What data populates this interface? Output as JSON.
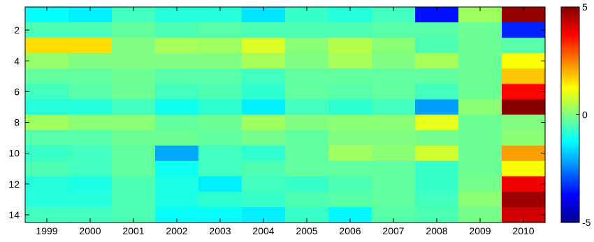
{
  "chart_data": {
    "type": "heatmap",
    "x": [
      "1999",
      "2000",
      "2001",
      "2002",
      "2003",
      "2004",
      "2005",
      "2006",
      "2007",
      "2008",
      "2009",
      "2010"
    ],
    "y": [
      1,
      2,
      3,
      4,
      5,
      6,
      7,
      8,
      9,
      10,
      11,
      12,
      13,
      14
    ],
    "y_ticks": [
      "2",
      "4",
      "6",
      "8",
      "10",
      "12",
      "14"
    ],
    "colorbar": {
      "min": -5,
      "max": 5,
      "ticks": [
        "5",
        "0",
        "-5"
      ],
      "colormap": "jet"
    },
    "values": [
      [
        -1.2,
        -1.4,
        -0.6,
        -0.9,
        -0.9,
        -1.5,
        -0.7,
        -0.9,
        -0.6,
        -3.6,
        0.3,
        4.8
      ],
      [
        -0.5,
        -0.5,
        -0.3,
        -0.5,
        -0.4,
        -0.5,
        -0.5,
        -0.5,
        -0.4,
        -0.4,
        -0.2,
        -3.4
      ],
      [
        1.6,
        1.6,
        0.0,
        0.4,
        0.3,
        0.9,
        0.1,
        0.5,
        0.1,
        -0.5,
        -0.2,
        -0.4
      ],
      [
        0.2,
        0.0,
        0.0,
        0.0,
        0.0,
        0.4,
        0.0,
        0.4,
        0.0,
        0.4,
        -0.2,
        1.2
      ],
      [
        -0.3,
        -0.3,
        -0.2,
        -0.4,
        -0.4,
        -0.6,
        -0.3,
        -0.3,
        -0.3,
        -0.3,
        -0.2,
        1.8
      ],
      [
        -0.6,
        -0.4,
        -0.2,
        -0.6,
        -0.5,
        -0.8,
        -0.3,
        -0.4,
        -0.3,
        -0.6,
        -0.2,
        3.7
      ],
      [
        -0.9,
        -0.9,
        -0.6,
        -1.1,
        -0.8,
        -1.4,
        -0.6,
        -0.8,
        -0.6,
        -2.2,
        0.1,
        4.9
      ],
      [
        0.3,
        0.1,
        0.1,
        -0.3,
        -0.2,
        0.3,
        0.0,
        0.1,
        0.1,
        1.0,
        -0.2,
        0.0
      ],
      [
        -0.4,
        -0.4,
        -0.2,
        -0.2,
        -0.3,
        -0.1,
        -0.3,
        0.0,
        0.0,
        -0.1,
        -0.2,
        0.1
      ],
      [
        -0.7,
        -0.6,
        -0.3,
        -2.1,
        -0.6,
        -0.8,
        -0.3,
        0.3,
        0.1,
        0.8,
        -0.2,
        2.2
      ],
      [
        -0.5,
        -0.6,
        -0.3,
        -1.1,
        -0.6,
        -0.5,
        -0.3,
        -0.3,
        -0.3,
        -0.7,
        -0.2,
        1.2
      ],
      [
        -0.9,
        -1.0,
        -0.5,
        -1.0,
        -1.4,
        -0.6,
        -0.7,
        -0.5,
        -0.3,
        -0.7,
        -0.1,
        3.9
      ],
      [
        -0.9,
        -0.9,
        -0.5,
        -1.0,
        -0.8,
        -0.7,
        -0.5,
        -0.4,
        -0.3,
        -0.6,
        0.1,
        4.7
      ],
      [
        -0.6,
        -0.6,
        -0.5,
        -1.2,
        -1.2,
        -1.4,
        -0.7,
        -1.3,
        -0.4,
        -0.5,
        -0.1,
        4.2
      ]
    ]
  }
}
